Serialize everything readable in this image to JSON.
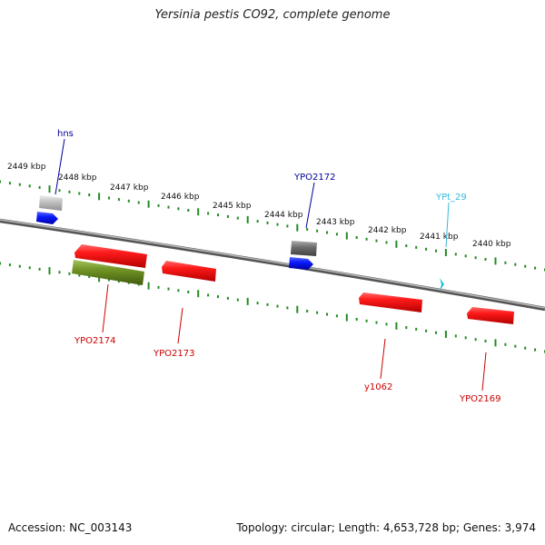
{
  "title": "Yersinia pestis CO92, complete genome",
  "footer": {
    "accession": "Accession: NC_003143",
    "summary": "Topology: circular; Length: 4,653,728 bp; Genes: 3,974"
  },
  "colors": {
    "red_gene": "#ee0000",
    "blue_gene": "#0000ee",
    "olive_gene": "#6b8e23",
    "gray_gene": "#777777",
    "lightgray_gene": "#bbbbbb",
    "trna_cyan": "#22bbdd",
    "backbone": "#8a8a8a",
    "ruler_tick": "#228b22",
    "label_red": "#cc0000",
    "label_blue": "#000099",
    "label_cyan": "#33bbdd"
  },
  "ruler_labels": [
    "2449 kbp",
    "2448 kbp",
    "2447 kbp",
    "2446 kbp",
    "2445 kbp",
    "2444 kbp",
    "2443 kbp",
    "2442 kbp",
    "2441 kbp",
    "2440 kbp"
  ],
  "gene_labels": {
    "hns": "hns",
    "ypo2172": "YPO2172",
    "ypt29": "YPt_29",
    "ypo2174": "YPO2174",
    "ypo2173": "YPO2173",
    "y1062": "y1062",
    "ypo2169": "YPO2169"
  }
}
